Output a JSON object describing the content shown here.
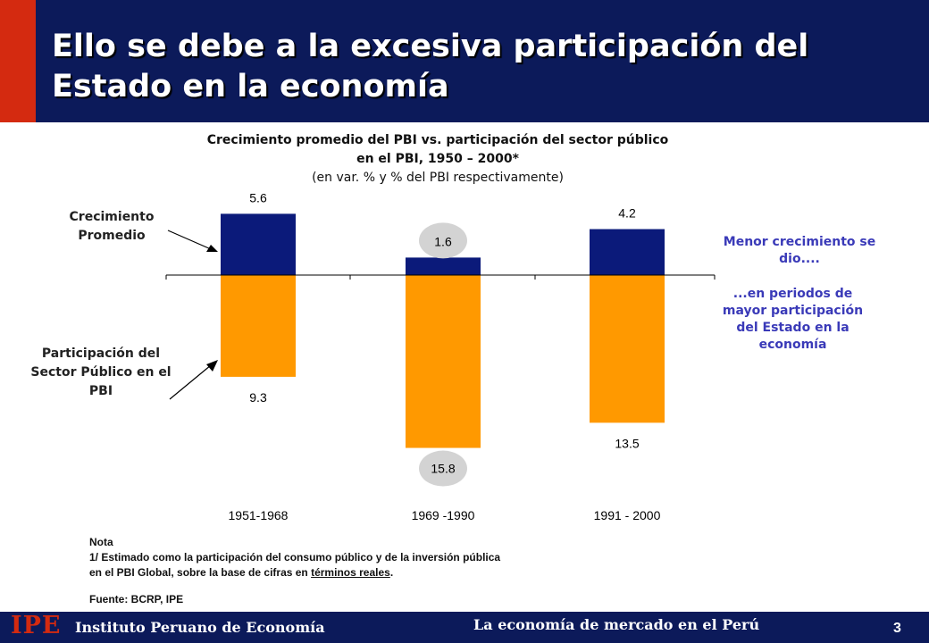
{
  "header": {
    "title": "Ello se debe a la excesiva participación del Estado en la economía"
  },
  "chart": {
    "title_line1": "Crecimiento promedio del PBI vs. participación del sector público",
    "title_line2": "en el PBI, 1950 – 2000*",
    "subtitle": "(en var. % y % del PBI respectivamente)"
  },
  "labels": {
    "growth": "Crecimiento Promedio",
    "public_share": "Participación del Sector Público en el PBI"
  },
  "right_notes": {
    "note1": "Menor crecimiento se dio....",
    "note2": "...en periodos de mayor participación del Estado en la economía"
  },
  "notes": {
    "title": "Nota",
    "line1": "1/ Estimado como la participación del consumo público y de la inversión pública",
    "line2_prefix": "en el PBI Global, sobre la base de cifras en ",
    "line2_underlined": "términos reales",
    "line2_suffix": ".",
    "source": "Fuente: BCRP, IPE"
  },
  "footer": {
    "logo": "IPE",
    "institution": "Instituto Peruano de Economía",
    "center": "La economía de mercado en el Perú",
    "page": "3"
  },
  "colors": {
    "navy": "#0c1a5a",
    "red": "#d42a10",
    "bar_growth": "#0b1a7a",
    "bar_public": "#ff9900",
    "highlight": "#d3d3d3",
    "note_text": "#3a3ab8"
  },
  "chart_data": {
    "type": "bar",
    "categories": [
      "1951-1968",
      "1969 -1990",
      "1991 - 2000"
    ],
    "series": [
      {
        "name": "Crecimiento Promedio",
        "values": [
          5.6,
          1.6,
          4.2
        ],
        "direction": "up",
        "color": "#0b1a7a"
      },
      {
        "name": "Participación del Sector Público en el PBI",
        "values": [
          9.3,
          15.8,
          13.5
        ],
        "direction": "down",
        "color": "#ff9900"
      }
    ],
    "value_labels": [
      [
        "5.6",
        "1.6",
        "4.2"
      ],
      [
        "9.3",
        "15.8",
        "13.5"
      ]
    ],
    "highlighted_category": "1969 -1990",
    "grid": false,
    "legend": "none"
  }
}
